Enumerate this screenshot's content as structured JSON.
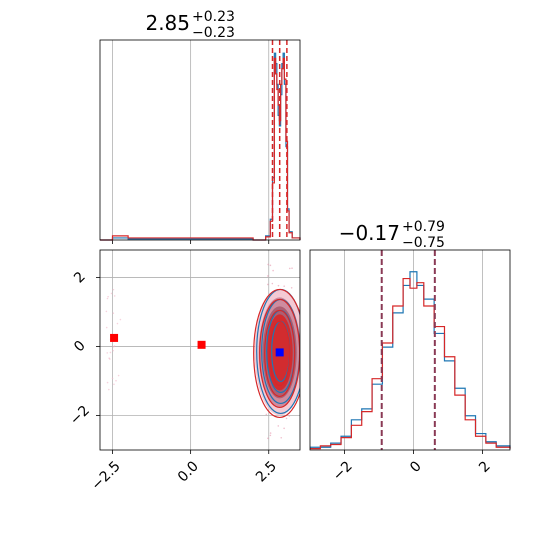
{
  "chart_data": [
    {
      "panel": "marginal-top",
      "type": "line",
      "title": {
        "value": "2.85",
        "sup": "+0.23",
        "sub": "−0.23"
      },
      "xlim": [
        -2.9,
        3.5
      ],
      "x_ticks": [
        -2.5,
        0.0,
        2.5
      ],
      "grid": true,
      "quantile_lines": [
        2.62,
        2.85,
        3.08
      ],
      "series": [
        {
          "color": "#1f77b4",
          "x": [
            -2.9,
            -2.5,
            -2.0,
            2.0,
            2.4,
            2.55,
            2.62,
            2.68,
            2.72,
            2.76,
            2.8,
            2.84,
            2.88,
            2.92,
            2.96,
            3.0,
            3.05,
            3.1,
            3.15,
            3.25,
            3.5
          ],
          "y": [
            0,
            2,
            1,
            0,
            4,
            20,
            60,
            180,
            170,
            150,
            120,
            110,
            140,
            170,
            180,
            150,
            90,
            30,
            8,
            2,
            0
          ]
        },
        {
          "color": "#d62728",
          "x": [
            -2.9,
            -2.5,
            -2.0,
            2.0,
            2.4,
            2.55,
            2.62,
            2.68,
            2.72,
            2.76,
            2.8,
            2.84,
            2.88,
            2.92,
            2.96,
            3.0,
            3.05,
            3.1,
            3.15,
            3.25,
            3.5
          ],
          "y": [
            0,
            4,
            2,
            0,
            3,
            18,
            55,
            175,
            160,
            145,
            130,
            115,
            150,
            165,
            175,
            155,
            95,
            28,
            7,
            2,
            0
          ]
        }
      ]
    },
    {
      "panel": "joint-2d",
      "type": "scatter",
      "xlim": [
        -2.9,
        3.5
      ],
      "ylim": [
        -3.0,
        2.8
      ],
      "x_ticks": [
        -2.5,
        0.0,
        2.5
      ],
      "x_tick_labels": [
        "−2.5",
        "0.0",
        "2.5"
      ],
      "y_ticks": [
        -2,
        0,
        2
      ],
      "y_tick_labels": [
        "−2",
        "0",
        "2"
      ],
      "grid": true,
      "markers": [
        {
          "x": -2.45,
          "y": 0.25,
          "color": "#ff0000"
        },
        {
          "x": 0.35,
          "y": 0.05,
          "color": "#ff0000"
        },
        {
          "x": 2.85,
          "y": -0.17,
          "color": "#0000ff"
        }
      ],
      "density_center": {
        "x": 2.85,
        "y": -0.17
      },
      "density_colors": [
        "#1f77b4",
        "#d62728"
      ]
    },
    {
      "panel": "marginal-right",
      "type": "line",
      "title": {
        "value": "−0.17",
        "sup": "+0.79",
        "sub": "−0.75"
      },
      "xlim": [
        -3.0,
        2.8
      ],
      "x_ticks": [
        -2,
        0,
        2
      ],
      "x_tick_labels": [
        "−2",
        "0",
        "2"
      ],
      "grid": true,
      "quantile_lines": [
        -0.92,
        0.62
      ],
      "series": [
        {
          "color": "#1f77b4",
          "x": [
            -3.0,
            -2.7,
            -2.4,
            -2.1,
            -1.8,
            -1.5,
            -1.2,
            -0.9,
            -0.6,
            -0.3,
            -0.1,
            0.1,
            0.3,
            0.6,
            0.9,
            1.2,
            1.5,
            1.8,
            2.1,
            2.4,
            2.8
          ],
          "y": [
            2,
            2,
            5,
            10,
            22,
            30,
            48,
            75,
            100,
            120,
            130,
            120,
            110,
            85,
            65,
            45,
            25,
            12,
            6,
            3,
            1
          ]
        },
        {
          "color": "#d62728",
          "x": [
            -3.0,
            -2.7,
            -2.4,
            -2.1,
            -1.8,
            -1.5,
            -1.2,
            -0.9,
            -0.6,
            -0.3,
            -0.1,
            0.1,
            0.3,
            0.6,
            0.9,
            1.2,
            1.5,
            1.8,
            2.1,
            2.4,
            2.8
          ],
          "y": [
            1,
            3,
            4,
            9,
            18,
            28,
            52,
            78,
            105,
            125,
            118,
            122,
            105,
            90,
            68,
            40,
            22,
            10,
            5,
            2,
            1
          ]
        }
      ]
    }
  ]
}
